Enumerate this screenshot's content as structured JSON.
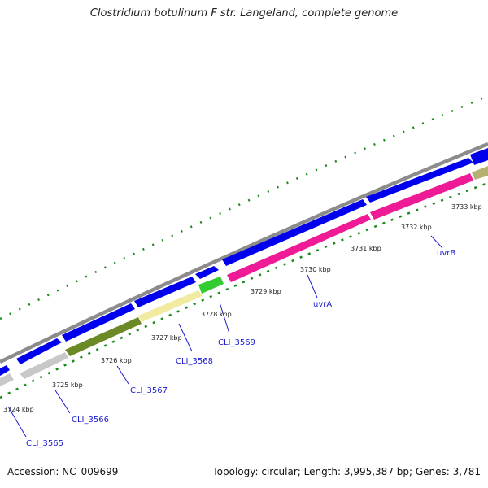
{
  "title": "Clostridium botulinum F str. Langeland, complete genome",
  "footer": {
    "accession": "Accession: NC_009699",
    "topology": "Topology: circular; Length: 3,995,387 bp; Genes: 3,781"
  },
  "kbp_labels": [
    "3724 kbp",
    "3725 kbp",
    "3726 kbp",
    "3727 kbp",
    "3728 kbp",
    "3729 kbp",
    "3730 kbp",
    "3731 kbp",
    "3732 kbp",
    "3733 kbp"
  ],
  "gene_labels": [
    "CLI_3565",
    "CLI_3566",
    "CLI_3567",
    "CLI_3568",
    "CLI_3569",
    "uvrA",
    "uvrB"
  ],
  "colors": {
    "backbone": "#8c8c8c",
    "forward_gene": "#0000ee",
    "ticks": "#1a8a1a",
    "gene_label": "#1a1acc",
    "pink": "#ee1a96",
    "olive": "#6b8a26",
    "pale_yellow": "#f0eba0",
    "gray": "#c8c8c8",
    "green": "#33cc33",
    "khaki": "#b8b070"
  }
}
